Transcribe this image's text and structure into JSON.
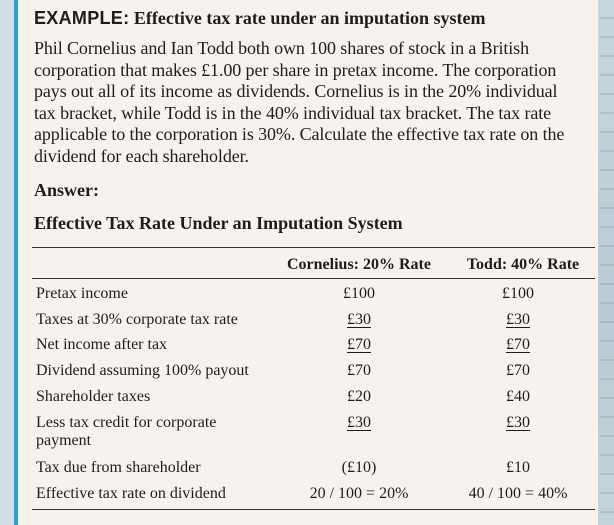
{
  "example": {
    "label": "EXAMPLE:",
    "title": "Effective tax rate under an imputation system",
    "problem_lines": [
      "Phil Cornelius and Ian Todd both own 100 shares of stock in a British",
      "corporation that makes £1.00 per share in pretax income. The corporation",
      "pays out all of its income as dividends. Cornelius is in the 20% individual",
      "tax bracket, while Todd is in the 40% individual tax bracket. The tax rate",
      "applicable to the corporation is 30%. Calculate the effective tax rate on the",
      "dividend for each shareholder."
    ],
    "answer_label": "Answer:"
  },
  "table": {
    "title": "Effective Tax Rate Under an Imputation System",
    "columns": [
      "Cornelius: 20% Rate",
      "Todd: 40% Rate"
    ],
    "rows": [
      {
        "label": "Pretax income",
        "cornelius": "£100",
        "todd": "£100"
      },
      {
        "label": "Taxes at 30% corporate tax rate",
        "cornelius": "£30",
        "todd": "£30"
      },
      {
        "label": "Net income after tax",
        "cornelius": "£70",
        "todd": "£70"
      },
      {
        "label": "Dividend assuming 100% payout",
        "cornelius": "£70",
        "todd": "£70"
      },
      {
        "label": "Shareholder taxes",
        "cornelius": "£20",
        "todd": "£40"
      },
      {
        "label": "Less tax credit for corporate payment",
        "cornelius": "£30",
        "todd": "£30"
      },
      {
        "label": "Tax due from shareholder",
        "cornelius": "(£10)",
        "todd": "£10"
      },
      {
        "label": "Effective tax rate on dividend",
        "cornelius": "20 / 100 = 20%",
        "todd": "40 / 100 = 40%"
      }
    ]
  },
  "colors": {
    "accent_border": "#2f9fd8",
    "panel_background": "#f6f3ee"
  }
}
